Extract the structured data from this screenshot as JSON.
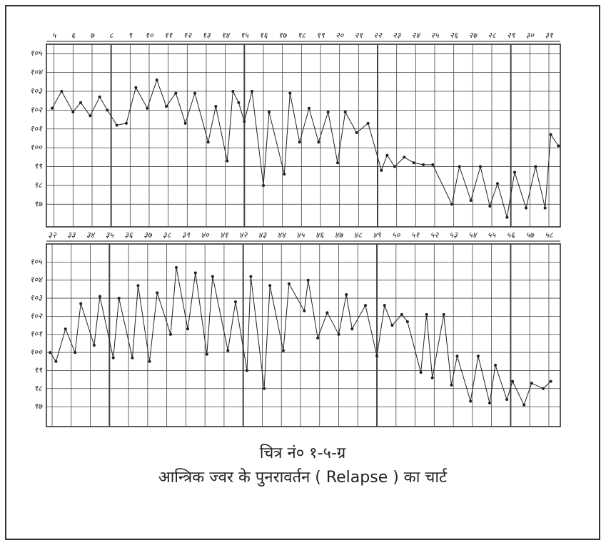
{
  "chart_data": [
    {
      "type": "line",
      "color": "#222",
      "xlim": [
        4.6,
        31.6
      ],
      "ylim": [
        95.8,
        105.5
      ],
      "xticks": [
        {
          "value": 5,
          "label": "५"
        },
        {
          "value": 6,
          "label": "६"
        },
        {
          "value": 7,
          "label": "७"
        },
        {
          "value": 8,
          "label": "८"
        },
        {
          "value": 9,
          "label": "९"
        },
        {
          "value": 10,
          "label": "१०"
        },
        {
          "value": 11,
          "label": "११"
        },
        {
          "value": 12,
          "label": "१२"
        },
        {
          "value": 13,
          "label": "१३"
        },
        {
          "value": 14,
          "label": "१४"
        },
        {
          "value": 15,
          "label": "१५"
        },
        {
          "value": 16,
          "label": "१६"
        },
        {
          "value": 17,
          "label": "१७"
        },
        {
          "value": 18,
          "label": "१८"
        },
        {
          "value": 19,
          "label": "१९"
        },
        {
          "value": 20,
          "label": "२०"
        },
        {
          "value": 21,
          "label": "२१"
        },
        {
          "value": 22,
          "label": "२२"
        },
        {
          "value": 23,
          "label": "२३"
        },
        {
          "value": 24,
          "label": "२४"
        },
        {
          "value": 25,
          "label": "२५"
        },
        {
          "value": 26,
          "label": "२६"
        },
        {
          "value": 27,
          "label": "२७"
        },
        {
          "value": 28,
          "label": "२८"
        },
        {
          "value": 29,
          "label": "२९"
        },
        {
          "value": 30,
          "label": "३०"
        },
        {
          "value": 31,
          "label": "३१"
        }
      ],
      "yticks": [
        {
          "value": 105,
          "label": "१०५"
        },
        {
          "value": 104,
          "label": "१०४"
        },
        {
          "value": 103,
          "label": "१०३"
        },
        {
          "value": 102,
          "label": "१०२"
        },
        {
          "value": 101,
          "label": "१०१"
        },
        {
          "value": 100,
          "label": "१००"
        },
        {
          "value": 99,
          "label": "९९"
        },
        {
          "value": 98,
          "label": "९८"
        },
        {
          "value": 97,
          "label": "९७"
        }
      ],
      "grid": true,
      "x": [
        4.9,
        5.4,
        6.0,
        6.4,
        6.9,
        7.4,
        7.8,
        8.3,
        8.8,
        9.3,
        9.9,
        10.4,
        10.9,
        11.4,
        11.9,
        12.4,
        13.1,
        13.5,
        14.1,
        14.4,
        14.7,
        15.0,
        15.4,
        16.0,
        16.3,
        17.1,
        17.4,
        17.9,
        18.4,
        18.9,
        19.4,
        19.9,
        20.3,
        20.9,
        21.5,
        22.2,
        22.5,
        22.9,
        23.4,
        23.9,
        24.4,
        24.9,
        25.9,
        26.3,
        26.9,
        27.4,
        27.9,
        28.3,
        28.8,
        29.2,
        29.8,
        30.3,
        30.8,
        31.1,
        31.5
      ],
      "values": [
        102.1,
        103,
        101.9,
        102.4,
        101.7,
        102.7,
        102,
        101.2,
        101.3,
        103.2,
        102.1,
        103.6,
        102.2,
        102.9,
        101.3,
        102.9,
        100.3,
        102.2,
        99.3,
        103,
        102.4,
        101.4,
        103,
        98,
        101.9,
        98.6,
        102.9,
        100.3,
        102.1,
        100.3,
        101.9,
        99.2,
        101.9,
        100.8,
        101.3,
        98.8,
        99.6,
        99,
        99.5,
        99.2,
        99.1,
        99.1,
        97,
        99,
        97.2,
        99,
        96.9,
        98.1,
        96.3,
        98.7,
        96.8,
        99,
        96.8,
        100.7,
        100.1
      ]
    },
    {
      "type": "line",
      "color": "#222",
      "xlim": [
        31.7,
        58.6
      ],
      "ylim": [
        95.9,
        106
      ],
      "xticks": [
        {
          "value": 32,
          "label": "३२"
        },
        {
          "value": 33,
          "label": "३३"
        },
        {
          "value": 34,
          "label": "३४"
        },
        {
          "value": 35,
          "label": "३५"
        },
        {
          "value": 36,
          "label": "३६"
        },
        {
          "value": 37,
          "label": "३७"
        },
        {
          "value": 38,
          "label": "३८"
        },
        {
          "value": 39,
          "label": "३९"
        },
        {
          "value": 40,
          "label": "४०"
        },
        {
          "value": 41,
          "label": "४१"
        },
        {
          "value": 42,
          "label": "४२"
        },
        {
          "value": 43,
          "label": "४३"
        },
        {
          "value": 44,
          "label": "४४"
        },
        {
          "value": 45,
          "label": "४५"
        },
        {
          "value": 46,
          "label": "४६"
        },
        {
          "value": 47,
          "label": "४७"
        },
        {
          "value": 48,
          "label": "४८"
        },
        {
          "value": 49,
          "label": "४९"
        },
        {
          "value": 50,
          "label": "५०"
        },
        {
          "value": 51,
          "label": "५१"
        },
        {
          "value": 52,
          "label": "५२"
        },
        {
          "value": 53,
          "label": "५३"
        },
        {
          "value": 54,
          "label": "५४"
        },
        {
          "value": 55,
          "label": "५५"
        },
        {
          "value": 56,
          "label": "५६"
        },
        {
          "value": 57,
          "label": "५७"
        },
        {
          "value": 58,
          "label": "५८"
        }
      ],
      "yticks": [
        {
          "value": 105,
          "label": "१०५"
        },
        {
          "value": 104,
          "label": "१०४"
        },
        {
          "value": 103,
          "label": "१०३"
        },
        {
          "value": 102,
          "label": "१०२"
        },
        {
          "value": 101,
          "label": "१०१"
        },
        {
          "value": 100,
          "label": "१००"
        },
        {
          "value": 99,
          "label": "९९"
        },
        {
          "value": 98,
          "label": "९८"
        },
        {
          "value": 97,
          "label": "९७"
        }
      ],
      "grid": true,
      "x": [
        31.9,
        32.2,
        32.7,
        33.2,
        33.5,
        34.2,
        34.5,
        35.2,
        35.5,
        36.2,
        36.5,
        37.1,
        37.5,
        38.2,
        38.5,
        39.1,
        39.5,
        40.1,
        40.4,
        41.2,
        41.6,
        42.2,
        42.4,
        43.1,
        43.4,
        44.1,
        44.4,
        45.2,
        45.4,
        45.9,
        46.4,
        47.0,
        47.4,
        47.7,
        48.4,
        49.0,
        49.4,
        49.8,
        50.3,
        50.6,
        51.3,
        51.6,
        51.9,
        52.5,
        52.9,
        53.2,
        53.9,
        54.3,
        54.9,
        55.2,
        55.8,
        56.1,
        56.7,
        57.1,
        57.7,
        58.1
      ],
      "values": [
        100,
        99.5,
        101.3,
        100,
        102.7,
        100.4,
        103.1,
        99.7,
        103,
        99.7,
        103.7,
        99.5,
        103.3,
        101,
        104.7,
        101.3,
        104.4,
        99.9,
        104.2,
        100.1,
        102.8,
        99,
        104.2,
        98,
        103.7,
        100.1,
        103.8,
        102.3,
        104,
        100.8,
        102.2,
        101,
        103.2,
        101.3,
        102.6,
        99.8,
        102.6,
        101.5,
        102.1,
        101.7,
        98.9,
        102.1,
        98.6,
        102.1,
        98.2,
        99.8,
        97.3,
        99.8,
        97.2,
        99.3,
        97.4,
        98.4,
        97.1,
        98.3,
        98,
        98.4
      ]
    }
  ],
  "caption": {
    "label": "चित्र नं० १-५-ग्र",
    "title": "आन्त्रिक ज्वर के पुनरावर्तन ( Relapse ) का चार्ट"
  }
}
